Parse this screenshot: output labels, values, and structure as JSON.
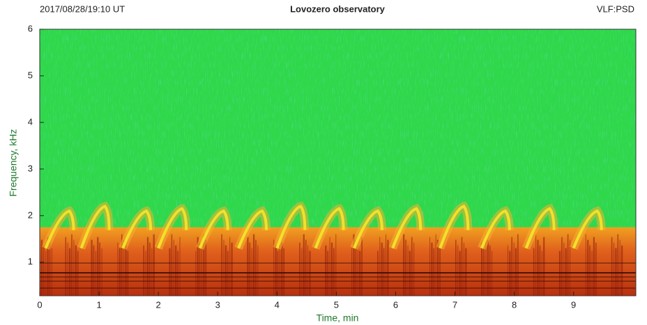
{
  "chart_data": {
    "type": "spectrogram",
    "title": "Lovozero observatory",
    "left_label": "2017/08/28/19:10 UT",
    "right_label": "VLF:PSD",
    "xlabel": "Time, min",
    "ylabel": "Frequency, kHz",
    "xlim": [
      0,
      10.05
    ],
    "ylim": [
      0.28,
      6
    ],
    "xticks": [
      0,
      1,
      2,
      3,
      4,
      5,
      6,
      7,
      8,
      9
    ],
    "yticks": [
      1,
      2,
      3,
      4,
      5,
      6
    ],
    "emission_top": 1.75,
    "bursts": {
      "t": [
        0.5,
        1.1,
        1.8,
        2.4,
        3.1,
        3.75,
        4.4,
        5.05,
        5.7,
        6.35,
        7.15,
        7.85,
        8.6,
        9.4
      ],
      "f": [
        2.1,
        2.2,
        2.1,
        2.15,
        2.1,
        2.1,
        2.2,
        2.15,
        2.1,
        2.15,
        2.2,
        2.1,
        2.15,
        2.1
      ]
    },
    "colors": {
      "background": "#2fd84a",
      "band": "#d8561c",
      "burst": "#f2e12a",
      "floor": "#8a1a0a"
    }
  }
}
